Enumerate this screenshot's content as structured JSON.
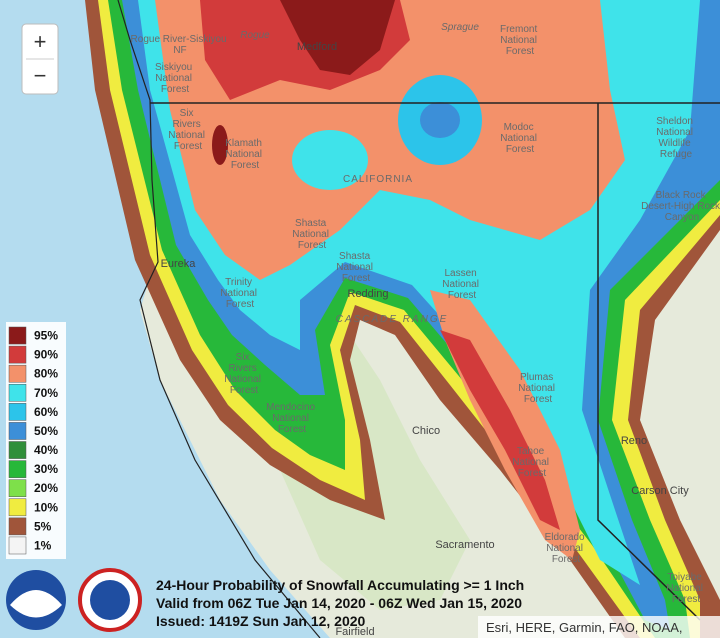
{
  "zoom": {
    "in": "+",
    "out": "−"
  },
  "legend": {
    "items": [
      {
        "label": "95%",
        "color": "#8b1a1a"
      },
      {
        "label": "90%",
        "color": "#d23b3b"
      },
      {
        "label": "80%",
        "color": "#f3916a"
      },
      {
        "label": "70%",
        "color": "#3fe3ea"
      },
      {
        "label": "60%",
        "color": "#2cc4ea"
      },
      {
        "label": "50%",
        "color": "#3c8fd8"
      },
      {
        "label": "40%",
        "color": "#2f8f3a"
      },
      {
        "label": "30%",
        "color": "#27b83a"
      },
      {
        "label": "20%",
        "color": "#7ee04a"
      },
      {
        "label": "10%",
        "color": "#f0ec40"
      },
      {
        "label": "5%",
        "color": "#a0553a"
      },
      {
        "label": "1%",
        "color": "#f4f4f4"
      }
    ]
  },
  "map_labels": [
    "Medford",
    "Rogue River-Siskiyou NF",
    "Siskiyou National Forest",
    "Fremont National Forest",
    "Modoc National Forest",
    "Sheldon National Wildlife Refuge",
    "Klamath National Forest",
    "Six Rivers National Forest",
    "CALIFORNIA",
    "Black Rock Desert-High Rock Canyon",
    "Shasta National Forest",
    "Eureka",
    "Shasta National Forest",
    "Lassen National Forest",
    "Trinity National Forest",
    "Redding",
    "CASCADE RANGE",
    "Six Rivers National Forest",
    "Mendocino National Forest",
    "Plumas National Forest",
    "Chico",
    "Reno",
    "Tahoe National Forest",
    "Carson City",
    "Eldorado National Forest",
    "Sacramento",
    "Toiyabe National Forest",
    "Fairfield",
    "Sprague",
    "Rogue"
  ],
  "caption": [
    "24-Hour Probability of Snowfall Accumulating >= 1 Inch",
    "Valid from 06Z Tue Jan 14, 2020 - 06Z Wed Jan 15, 2020",
    "Issued: 1419Z Sun Jan 12, 2020"
  ],
  "attribution": "Esri, HERE, Garmin, FAO, NOAA,"
}
